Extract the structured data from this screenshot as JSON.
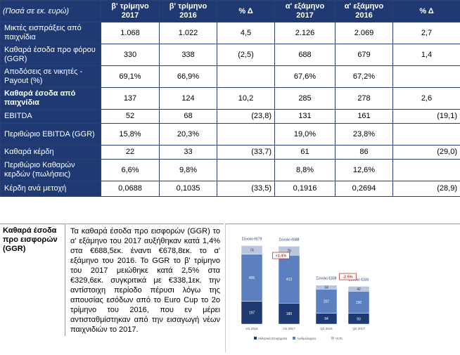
{
  "table": {
    "header": {
      "lead": "(Ποσά σε εκ. ευρώ)",
      "columns": [
        "β' τρίμηνο 2017",
        "β' τρίμηνο 2016",
        "% Δ",
        "α' εξάμηνο 2017",
        "α' εξάμηνο 2016",
        "% Δ"
      ]
    },
    "rows": [
      {
        "label": "Μικτές εισπράξεις από παιχνίδια",
        "bold": false,
        "values": [
          "1.068",
          "1.022",
          "4,5",
          "2.126",
          "2.069",
          "2,7"
        ]
      },
      {
        "label": "Καθαρά έσοδα προ φόρου (GGR)",
        "bold": false,
        "values": [
          "330",
          "338",
          "(2,5)",
          "688",
          "679",
          "1,4"
        ]
      },
      {
        "label": "Αποδόσεις σε νικητές - Payout (%)",
        "bold": false,
        "values": [
          "69,1%",
          "66,9%",
          "",
          "67,6%",
          "67,2%",
          ""
        ]
      },
      {
        "label": "Καθαρά έσοδα από παιχνίδια",
        "bold": true,
        "values": [
          "137",
          "124",
          "10,2",
          "285",
          "278",
          "2,6"
        ]
      },
      {
        "label": "EBITDA",
        "bold": false,
        "values": [
          "52",
          "68",
          "(23,8)",
          "131",
          "161",
          "(19,1)"
        ]
      },
      {
        "label": "Περιθώριο EBITDA (GGR)",
        "bold": false,
        "values": [
          "15,8%",
          "20,3%",
          "",
          "19,0%",
          "23,8%",
          ""
        ]
      },
      {
        "label": "Καθαρά κέρδη",
        "bold": false,
        "values": [
          "22",
          "33",
          "(33,7)",
          "61",
          "86",
          "(29,0)"
        ]
      },
      {
        "label": "Περιθώριο Καθαρών κερδών (πωλήσεις)",
        "bold": false,
        "values": [
          "6,6%",
          "9,8%",
          "",
          "8,8%",
          "12,6%",
          ""
        ]
      },
      {
        "label": "Κέρδη ανά μετοχή",
        "bold": false,
        "values": [
          "0,0688",
          "0,1035",
          "(33,5)",
          "0,1916",
          "0,2694",
          "(28,9)"
        ]
      }
    ]
  },
  "section": {
    "label": "Καθαρά έσοδα προ εισφορών (GGR)",
    "text": "Τα καθαρά έσοδα προ εισφορών (GGR) το α' εξάμηνο του 2017 αυξήθηκαν κατά 1,4% στα €688,5εκ. έναντι €678,8εκ. το α' εξάμηνο του 2016. Το GGR το β' τρίμηνο του 2017 μειώθηκε κατά 2,5% στα €329,6εκ. συγκριτικά με €338,1εκ. την αντίστοιχη περίοδο πέρυσι λόγω της απουσίας εσόδων από το Euro Cup το 2ο τρίμηνο του 2016, που εν μέρει αντισταθμίστηκαν από την εισαγωγή νέων παιχνιδιών το 2017."
  },
  "chart_data": {
    "type": "bar",
    "categories": [
      "H1 2016",
      "H1 2017",
      "Q2 2016",
      "Q2 2017"
    ],
    "series": [
      {
        "values": [
          197,
          180,
          94,
          93
        ]
      },
      {
        "values": [
          405,
          413,
          207,
          190
        ]
      },
      {
        "values": [
          74,
          78,
          34,
          42
        ]
      }
    ],
    "totals": [
      "Σύνολο €679",
      "Σύνολο €688",
      "Σύνολο €338",
      "Σύνολο €330"
    ],
    "growth_labels": [
      "+1.4%",
      "-2.5%"
    ],
    "legend": [
      "Αθλητικά Στοιχήματα",
      "Αριθμολαχεία",
      "VLTs"
    ],
    "colors": [
      "#1f3a73",
      "#5b7fbf",
      "#b9c6dd"
    ],
    "accent": "#c0392b"
  }
}
